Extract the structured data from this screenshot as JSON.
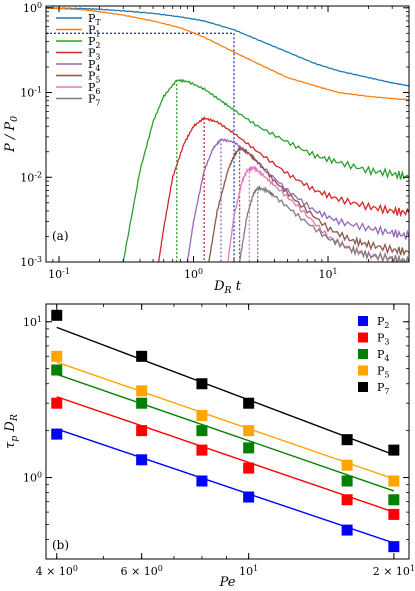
{
  "chart_data": [
    {
      "type": "line",
      "panel_label": "(a)",
      "xlabel": "D_R t",
      "ylabel": "P / P_0",
      "xscale": "log",
      "yscale": "log",
      "xlim": [
        0.08,
        40
      ],
      "ylim": [
        0.001,
        1.05
      ],
      "x_ticks": [
        {
          "v": 0.1,
          "label": "10^-1"
        },
        {
          "v": 1,
          "label": "10^0"
        },
        {
          "v": 10,
          "label": "10^1"
        }
      ],
      "y_ticks": [
        {
          "v": 0.001,
          "label": "10^-3"
        },
        {
          "v": 0.01,
          "label": "10^-2"
        },
        {
          "v": 0.1,
          "label": "10^-1"
        },
        {
          "v": 1,
          "label": "10^0"
        }
      ],
      "legend_position": "top-left",
      "series": [
        {
          "name": "P_T",
          "color": "#1f77b4",
          "x": [
            0.08,
            0.1,
            0.15,
            0.2,
            0.3,
            0.5,
            0.8,
            1.2,
            2,
            3,
            5,
            8,
            12,
            20,
            30,
            40
          ],
          "y": [
            1.0,
            0.99,
            0.98,
            0.96,
            0.92,
            0.86,
            0.78,
            0.7,
            0.55,
            0.42,
            0.3,
            0.22,
            0.18,
            0.15,
            0.13,
            0.12
          ]
        },
        {
          "name": "P_1",
          "color": "#ff7f0e",
          "x": [
            0.08,
            0.1,
            0.15,
            0.2,
            0.3,
            0.5,
            0.8,
            1.2,
            2,
            3,
            5,
            8,
            12,
            20,
            30,
            40
          ],
          "y": [
            1.0,
            0.98,
            0.95,
            0.9,
            0.82,
            0.7,
            0.58,
            0.45,
            0.3,
            0.22,
            0.15,
            0.12,
            0.1,
            0.09,
            0.085,
            0.082
          ]
        },
        {
          "name": "P_2",
          "color": "#2ca02c",
          "x": [
            0.3,
            0.4,
            0.5,
            0.6,
            0.75,
            0.9,
            1.2,
            1.6,
            2,
            3,
            5,
            8,
            12,
            20,
            30,
            40
          ],
          "y": [
            0.001,
            0.012,
            0.045,
            0.09,
            0.14,
            0.135,
            0.11,
            0.08,
            0.062,
            0.04,
            0.026,
            0.018,
            0.015,
            0.012,
            0.011,
            0.01
          ]
        },
        {
          "name": "P_3",
          "color": "#d62728",
          "x": [
            0.55,
            0.6,
            0.7,
            0.85,
            1.0,
            1.2,
            1.5,
            2,
            3,
            5,
            8,
            12,
            20,
            30,
            40
          ],
          "y": [
            0.001,
            0.0025,
            0.01,
            0.025,
            0.04,
            0.05,
            0.045,
            0.033,
            0.02,
            0.011,
            0.007,
            0.0055,
            0.0045,
            0.004,
            0.0038
          ]
        },
        {
          "name": "P_4",
          "color": "#9467bd",
          "x": [
            0.9,
            1.0,
            1.2,
            1.4,
            1.6,
            2,
            2.5,
            3,
            5,
            8,
            12,
            20,
            30,
            40
          ],
          "y": [
            0.001,
            0.003,
            0.012,
            0.022,
            0.028,
            0.026,
            0.02,
            0.015,
            0.007,
            0.004,
            0.003,
            0.0025,
            0.0022,
            0.002
          ]
        },
        {
          "name": "P_5",
          "color": "#8c564b",
          "x": [
            1.3,
            1.5,
            1.8,
            2.0,
            2.2,
            2.6,
            3,
            4,
            6,
            10,
            15,
            20,
            30,
            40
          ],
          "y": [
            0.001,
            0.004,
            0.012,
            0.018,
            0.022,
            0.019,
            0.015,
            0.009,
            0.005,
            0.0025,
            0.0018,
            0.0016,
            0.0014,
            0.0013
          ]
        },
        {
          "name": "P_6",
          "color": "#e377c2",
          "x": [
            1.8,
            2.0,
            2.3,
            2.5,
            2.8,
            3.2,
            4,
            6,
            10,
            15,
            20,
            30,
            40
          ],
          "y": [
            0.001,
            0.0035,
            0.009,
            0.012,
            0.013,
            0.011,
            0.008,
            0.0045,
            0.002,
            0.0014,
            0.0012,
            0.0011,
            0.001
          ]
        },
        {
          "name": "P_7",
          "color": "#7f7f7f",
          "x": [
            2.2,
            2.5,
            2.8,
            3.0,
            3.5,
            4,
            6,
            10,
            15,
            20,
            30,
            40
          ],
          "y": [
            0.001,
            0.0035,
            0.0065,
            0.0075,
            0.007,
            0.006,
            0.0035,
            0.0019,
            0.0014,
            0.0012,
            0.0011,
            0.001
          ]
        }
      ],
      "reference_lines": [
        {
          "color": "#1f3fbf",
          "x": 2.0,
          "y": 0.5
        },
        {
          "color": "#2ca02c",
          "x": 0.75,
          "y": 0.14
        },
        {
          "color": "#d62728",
          "x": 1.2,
          "y": 0.05
        },
        {
          "color": "#9467bd",
          "x": 1.6,
          "y": 0.028
        },
        {
          "color": "#8c564b",
          "x": 2.2,
          "y": 0.022
        },
        {
          "color": "#e377c2",
          "x": 2.6,
          "y": 0.013
        },
        {
          "color": "#7f7f7f",
          "x": 3.0,
          "y": 0.0075
        }
      ]
    },
    {
      "type": "scatter",
      "panel_label": "(b)",
      "xlabel": "Pe",
      "ylabel": "τ_p D_R",
      "xscale": "log",
      "yscale": "log",
      "xlim": [
        3.8,
        21.5
      ],
      "ylim": [
        0.3,
        13
      ],
      "x_ticks": [
        {
          "v": 4,
          "label": "4 × 10^0"
        },
        {
          "v": 6,
          "label": "6 × 10^0"
        },
        {
          "v": 10,
          "label": "10^1"
        },
        {
          "v": 20,
          "label": "2 × 10^1"
        }
      ],
      "y_ticks": [
        {
          "v": 1,
          "label": "10^0"
        },
        {
          "v": 10,
          "label": "10^1"
        }
      ],
      "legend_position": "top-right",
      "x": [
        4,
        6,
        8,
        10,
        16,
        20
      ],
      "series": [
        {
          "name": "P_2",
          "color": "#0000ff",
          "values": [
            1.9,
            1.3,
            0.95,
            0.75,
            0.46,
            0.36
          ],
          "fit": [
            2.05,
            0.38
          ]
        },
        {
          "name": "P_3",
          "color": "#ff0000",
          "values": [
            3.0,
            2.0,
            1.5,
            1.15,
            0.72,
            0.58
          ],
          "fit": [
            3.3,
            0.6
          ]
        },
        {
          "name": "P_4",
          "color": "#008000",
          "values": [
            4.9,
            3.0,
            2.0,
            1.55,
            0.95,
            0.72
          ],
          "fit": [
            4.6,
            0.82
          ]
        },
        {
          "name": "P_5",
          "color": "#ffa500",
          "values": [
            6.0,
            3.6,
            2.5,
            2.0,
            1.2,
            0.95
          ],
          "fit": [
            5.5,
            0.98
          ]
        },
        {
          "name": "P_7",
          "color": "#000000",
          "values": [
            11.0,
            6.0,
            4.0,
            3.0,
            1.75,
            1.5
          ],
          "fit": [
            9.2,
            1.4
          ]
        }
      ]
    }
  ]
}
